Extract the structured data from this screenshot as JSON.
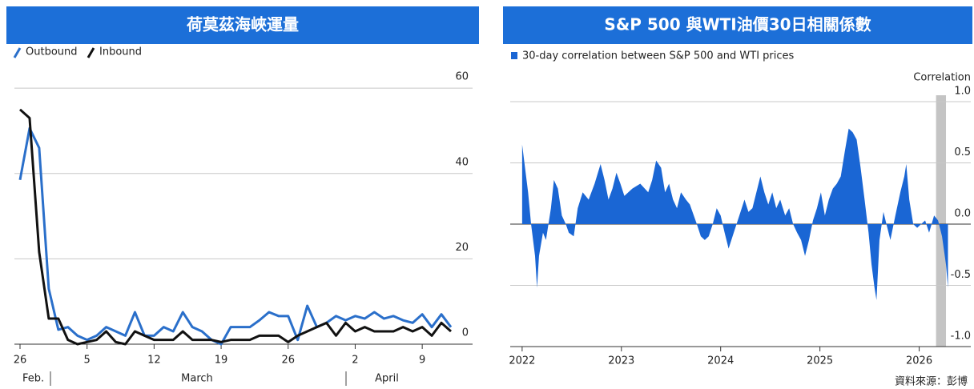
{
  "chart_data": [
    {
      "type": "line",
      "title": "荷莫茲海峽運量",
      "categories": [
        "26",
        null,
        null,
        null,
        null,
        null,
        null,
        "5",
        null,
        null,
        null,
        null,
        null,
        null,
        "12",
        null,
        null,
        null,
        null,
        null,
        null,
        "19",
        null,
        null,
        null,
        null,
        null,
        null,
        "26",
        null,
        null,
        null,
        null,
        null,
        null,
        "2",
        null,
        null,
        null,
        null,
        null,
        null,
        "9",
        null,
        null,
        null
      ],
      "month_labels": [
        "Feb.",
        "March",
        "April"
      ],
      "series": [
        {
          "name": "Outbound",
          "color": "#2a6fca",
          "values": [
            38.5,
            50.6,
            46,
            13,
            3.4,
            4,
            2,
            1,
            2,
            4,
            3,
            2,
            7.5,
            2,
            2,
            4,
            3,
            7.5,
            4,
            3,
            1,
            0,
            4,
            4,
            4,
            5.6,
            7.5,
            6.6,
            6.6,
            1,
            9,
            4,
            5,
            6.6,
            5.6,
            6.6,
            6,
            7.5,
            6,
            6.6,
            5.6,
            5,
            7,
            4,
            7,
            4
          ]
        },
        {
          "name": "Inbound",
          "color": "#111111",
          "values": [
            55,
            53,
            21.6,
            6,
            6,
            1,
            0,
            0.5,
            1,
            3,
            0.5,
            0,
            3,
            2,
            1,
            1,
            1,
            3,
            1,
            1,
            1,
            0.5,
            1,
            1,
            1,
            2,
            2,
            2,
            0.5,
            2,
            3,
            4,
            5,
            2,
            5,
            3,
            4,
            3,
            3,
            3,
            4,
            3,
            4,
            2,
            5,
            3
          ]
        }
      ],
      "ylim": [
        0,
        62
      ],
      "yticks": [
        0,
        20,
        40,
        60
      ],
      "grid": true
    },
    {
      "type": "area",
      "title": "S&P 500 與WTI油價30日相關係數",
      "y_label": "Correlation",
      "source": "資料來源：彭博",
      "x": [
        2022.0,
        2022.02,
        2022.06,
        2022.09,
        2022.13,
        2022.15,
        2022.17,
        2022.21,
        2022.24,
        2022.29,
        2022.32,
        2022.36,
        2022.4,
        2022.44,
        2022.47,
        2022.52,
        2022.56,
        2022.61,
        2022.67,
        2022.73,
        2022.79,
        2022.83,
        2022.87,
        2022.91,
        2022.95,
        2022.99,
        2023.03,
        2023.11,
        2023.19,
        2023.27,
        2023.31,
        2023.35,
        2023.4,
        2023.44,
        2023.48,
        2023.52,
        2023.56,
        2023.6,
        2023.65,
        2023.69,
        2023.76,
        2023.8,
        2023.84,
        2023.88,
        2023.92,
        2023.96,
        2024.0,
        2024.04,
        2024.08,
        2024.12,
        2024.16,
        2024.2,
        2024.24,
        2024.28,
        2024.32,
        2024.36,
        2024.4,
        2024.44,
        2024.48,
        2024.52,
        2024.56,
        2024.6,
        2024.65,
        2024.69,
        2024.73,
        2024.77,
        2024.81,
        2024.85,
        2024.89,
        2024.93,
        2024.97,
        2025.01,
        2025.05,
        2025.09,
        2025.13,
        2025.17,
        2025.21,
        2025.25,
        2025.29,
        2025.33,
        2025.37,
        2025.41,
        2025.45,
        2025.49,
        2025.52,
        2025.55,
        2025.57,
        2025.6,
        2025.64,
        2025.67,
        2025.71,
        2025.76,
        2025.81,
        2025.85,
        2025.87,
        2025.9,
        2025.94,
        2025.98,
        2026.02,
        2026.06,
        2026.1,
        2026.15,
        2026.19,
        2026.23,
        2026.27,
        2026.29
      ],
      "series": [
        {
          "name": "30-day correlation between S&P 500 and WTI prices",
          "color": "#1a66d4",
          "values": [
            0.65,
            0.52,
            0.26,
            0.0,
            -0.26,
            -0.52,
            -0.26,
            -0.07,
            -0.13,
            0.13,
            0.36,
            0.29,
            0.07,
            0.0,
            -0.07,
            -0.1,
            0.13,
            0.26,
            0.2,
            0.33,
            0.49,
            0.36,
            0.2,
            0.29,
            0.42,
            0.33,
            0.23,
            0.29,
            0.33,
            0.26,
            0.36,
            0.52,
            0.46,
            0.26,
            0.33,
            0.2,
            0.13,
            0.26,
            0.2,
            0.16,
            0.0,
            -0.1,
            -0.13,
            -0.1,
            0.0,
            0.13,
            0.07,
            -0.07,
            -0.2,
            -0.1,
            0.0,
            0.1,
            0.2,
            0.1,
            0.13,
            0.26,
            0.39,
            0.26,
            0.16,
            0.26,
            0.13,
            0.2,
            0.07,
            0.13,
            0.0,
            -0.07,
            -0.13,
            -0.26,
            -0.13,
            0.03,
            0.13,
            0.26,
            0.07,
            0.2,
            0.29,
            0.33,
            0.39,
            0.59,
            0.78,
            0.75,
            0.69,
            0.46,
            0.2,
            -0.07,
            -0.33,
            -0.52,
            -0.62,
            -0.13,
            0.1,
            0.0,
            -0.13,
            0.07,
            0.26,
            0.39,
            0.49,
            0.2,
            0.0,
            -0.03,
            0.0,
            0.03,
            -0.07,
            0.07,
            0.03,
            -0.1,
            -0.33,
            -0.52
          ]
        }
      ],
      "shaded_span": [
        2026.17,
        2026.27
      ],
      "xlim": [
        2021.88,
        2026.52
      ],
      "xticks": [
        2022,
        2023,
        2024,
        2025,
        2026
      ],
      "ylim": [
        -1,
        1
      ],
      "yticks": [
        {
          "value": 1,
          "label": "1.0"
        },
        0.5,
        {
          "value": 0,
          "label": "0.0"
        },
        -0.5,
        {
          "value": -1,
          "label": "-1.0"
        }
      ],
      "grid": true
    }
  ]
}
